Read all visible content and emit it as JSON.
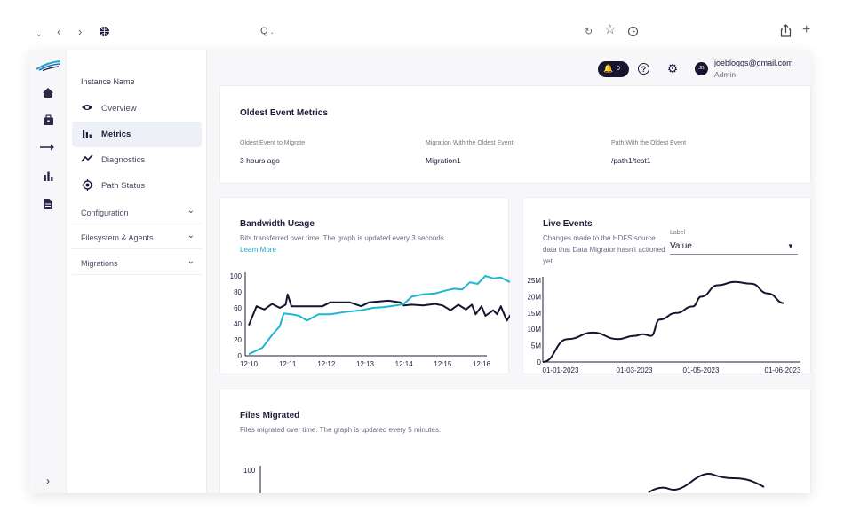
{
  "browser": {
    "address_text": "Q ."
  },
  "sidebar": {
    "instance_name": "Instance Name",
    "items": [
      {
        "label": "Overview"
      },
      {
        "label": "Metrics"
      },
      {
        "label": "Diagnostics"
      },
      {
        "label": "Path Status"
      }
    ],
    "groups": [
      {
        "label": "Configuration"
      },
      {
        "label": "Filesystem & Agents"
      },
      {
        "label": "Migrations"
      }
    ]
  },
  "header": {
    "notification_count": "0",
    "user_email": "joebloggs@gmail.com",
    "user_role": "Admin",
    "avatar_initials": "JB"
  },
  "oldest": {
    "title": "Oldest Event Metrics",
    "fields": [
      {
        "label": "Oldest Event to Migrate",
        "value": "3 hours ago"
      },
      {
        "label": "Migration With the Oldest Event",
        "value": "Migration1"
      },
      {
        "label": "Path With the Oldest Event",
        "value": "/path1/test1"
      }
    ]
  },
  "bandwidth": {
    "title": "Bandwidth Usage",
    "subtitle": "Bits transferred over time. The graph is updated every 3 seconds.",
    "link": "Learn More"
  },
  "live": {
    "title": "Live Events",
    "subtitle": "Changes made to the HDFS source data that Data Migrator hasn't actioned yet.",
    "select_label": "Label",
    "select_value": "Value"
  },
  "files": {
    "title": "Files Migrated",
    "subtitle": "Files migrated over time. The graph is updated every 5 minutes.",
    "y_tick_visible": "100"
  },
  "colors": {
    "navy": "#16142e",
    "teal": "#1fb6d3",
    "link": "#1aa6c9"
  },
  "chart_data": [
    {
      "type": "line",
      "title": "Bandwidth Usage",
      "x": [
        "12:10",
        "12:11",
        "12:12",
        "12:13",
        "12:14",
        "12:15",
        "12:16"
      ],
      "ylim": [
        0,
        100
      ],
      "yticks": [
        0,
        20,
        40,
        60,
        80,
        100
      ],
      "series": [
        {
          "color": "#16142e",
          "points": [
            [
              0,
              38
            ],
            [
              0.2,
              62
            ],
            [
              0.4,
              58
            ],
            [
              0.6,
              65
            ],
            [
              0.8,
              60
            ],
            [
              0.95,
              64
            ],
            [
              1.0,
              77
            ],
            [
              1.1,
              62
            ],
            [
              1.5,
              62
            ],
            [
              1.9,
              62
            ],
            [
              2.1,
              67
            ],
            [
              2.6,
              67
            ],
            [
              2.9,
              62
            ],
            [
              3.1,
              67
            ],
            [
              3.6,
              69
            ],
            [
              3.9,
              67
            ],
            [
              4.0,
              63
            ],
            [
              4.2,
              64
            ],
            [
              4.5,
              63
            ],
            [
              4.8,
              65
            ],
            [
              5.0,
              63
            ],
            [
              5.2,
              57
            ],
            [
              5.4,
              64
            ],
            [
              5.6,
              58
            ],
            [
              5.75,
              64
            ],
            [
              5.85,
              52
            ],
            [
              6.0,
              62
            ],
            [
              6.1,
              50
            ],
            [
              6.3,
              57
            ],
            [
              6.4,
              52
            ],
            [
              6.5,
              62
            ],
            [
              6.65,
              44
            ],
            [
              6.8,
              55
            ],
            [
              6.9,
              44
            ]
          ]
        },
        {
          "color": "#1fb6d3",
          "points": [
            [
              0,
              2
            ],
            [
              0.35,
              10
            ],
            [
              0.6,
              26
            ],
            [
              0.8,
              37
            ],
            [
              0.9,
              53
            ],
            [
              1.1,
              52
            ],
            [
              1.3,
              50
            ],
            [
              1.5,
              44
            ],
            [
              1.8,
              52
            ],
            [
              2.1,
              52
            ],
            [
              2.5,
              55
            ],
            [
              2.9,
              57
            ],
            [
              3.2,
              60
            ],
            [
              3.5,
              61
            ],
            [
              3.8,
              63
            ],
            [
              4.0,
              65
            ],
            [
              4.2,
              74
            ],
            [
              4.5,
              77
            ],
            [
              4.8,
              78
            ],
            [
              5.1,
              82
            ],
            [
              5.3,
              84
            ],
            [
              5.5,
              83
            ],
            [
              5.7,
              92
            ],
            [
              5.9,
              90
            ],
            [
              6.1,
              100
            ],
            [
              6.3,
              97
            ],
            [
              6.5,
              98
            ],
            [
              6.7,
              93
            ],
            [
              6.9,
              90
            ]
          ]
        }
      ]
    },
    {
      "type": "line",
      "title": "Live Events",
      "x": [
        "01-01-2023",
        "01-03-2023",
        "01-05-2023",
        "01-06-2023"
      ],
      "ylim": [
        0,
        25
      ],
      "yticks": [
        "0",
        "5M",
        "10M",
        "15M",
        "20M",
        "25M"
      ],
      "series": [
        {
          "color": "#16142e",
          "points": [
            [
              0,
              0
            ],
            [
              0.15,
              7
            ],
            [
              0.3,
              9
            ],
            [
              0.45,
              7
            ],
            [
              0.55,
              8
            ],
            [
              0.6,
              8.5
            ],
            [
              0.65,
              8
            ],
            [
              0.7,
              13
            ],
            [
              0.8,
              15
            ],
            [
              0.9,
              17
            ],
            [
              0.95,
              20
            ],
            [
              1.05,
              23.5
            ],
            [
              1.15,
              24.5
            ],
            [
              1.25,
              24
            ],
            [
              1.35,
              21
            ],
            [
              1.45,
              18
            ]
          ]
        }
      ]
    },
    {
      "type": "line",
      "title": "Files Migrated",
      "yticks": [
        100
      ]
    }
  ]
}
